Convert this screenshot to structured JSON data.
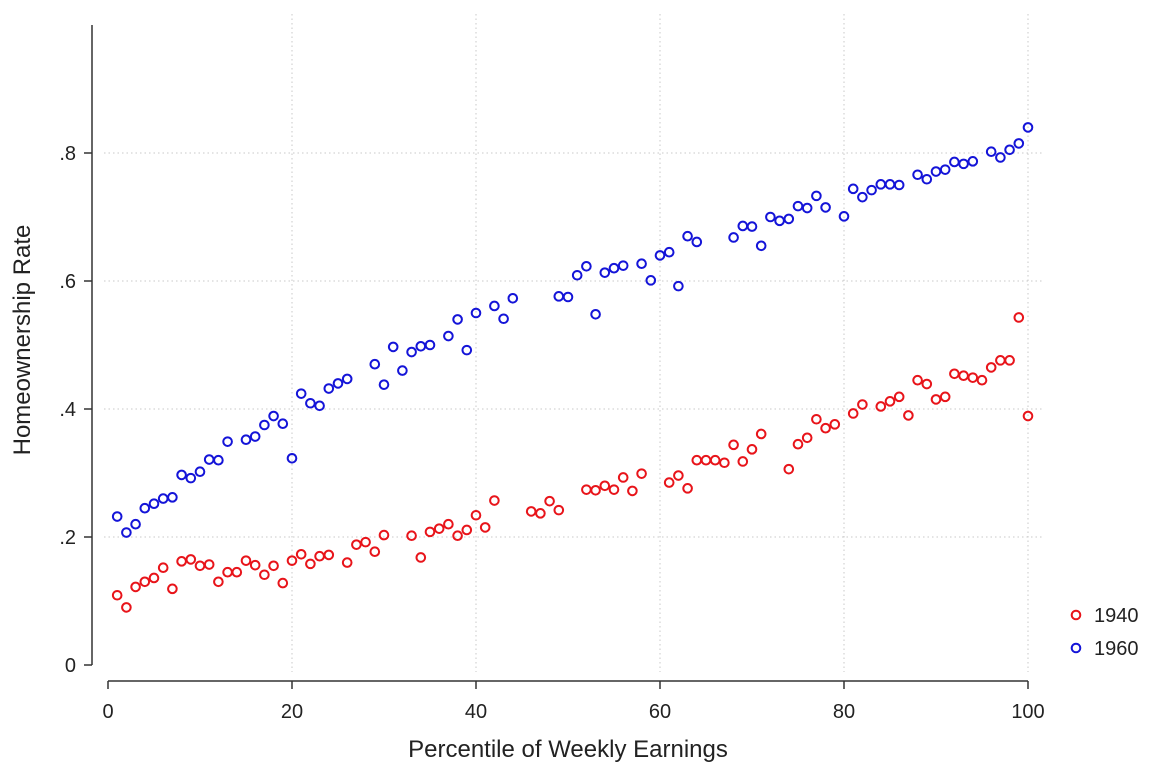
{
  "chart_data": {
    "type": "scatter",
    "xlabel": "Percentile of Weekly Earnings",
    "ylabel": "Homeownership Rate",
    "xlim": [
      0,
      100
    ],
    "ylim": [
      0,
      1.0
    ],
    "xticks": [
      {
        "value": 0,
        "label": "0"
      },
      {
        "value": 20,
        "label": "20"
      },
      {
        "value": 40,
        "label": "40"
      },
      {
        "value": 60,
        "label": "60"
      },
      {
        "value": 80,
        "label": "80"
      },
      {
        "value": 100,
        "label": "100"
      }
    ],
    "yticks": [
      {
        "value": 0,
        "label": "0"
      },
      {
        "value": 0.2,
        "label": ".2"
      },
      {
        "value": 0.4,
        "label": ".4"
      },
      {
        "value": 0.6,
        "label": ".6"
      },
      {
        "value": 0.8,
        "label": ".8"
      }
    ],
    "grid": true,
    "legend_position": "right-bottom",
    "series": [
      {
        "name": "1940",
        "color": "#e8141a",
        "x": [
          1,
          2,
          3,
          4,
          5,
          6,
          7,
          8,
          9,
          10,
          11,
          12,
          13,
          14,
          15,
          16,
          17,
          18,
          19,
          20,
          21,
          22,
          23,
          24,
          26,
          27,
          28,
          29,
          30,
          33,
          34,
          35,
          36,
          37,
          38,
          39,
          40,
          41,
          42,
          46,
          47,
          48,
          49,
          52,
          53,
          54,
          55,
          56,
          57,
          58,
          61,
          62,
          63,
          64,
          65,
          66,
          67,
          68,
          69,
          70,
          71,
          74,
          75,
          76,
          77,
          78,
          79,
          81,
          82,
          84,
          85,
          86,
          87,
          88,
          89,
          90,
          91,
          92,
          93,
          94,
          95,
          96,
          97,
          98,
          99,
          100
        ],
        "y": [
          0.109,
          0.09,
          0.122,
          0.13,
          0.136,
          0.152,
          0.119,
          0.162,
          0.165,
          0.155,
          0.157,
          0.13,
          0.145,
          0.145,
          0.163,
          0.156,
          0.141,
          0.155,
          0.128,
          0.163,
          0.173,
          0.158,
          0.17,
          0.172,
          0.16,
          0.188,
          0.192,
          0.177,
          0.203,
          0.202,
          0.168,
          0.208,
          0.213,
          0.22,
          0.202,
          0.211,
          0.234,
          0.215,
          0.257,
          0.24,
          0.237,
          0.256,
          0.242,
          0.274,
          0.273,
          0.28,
          0.274,
          0.293,
          0.272,
          0.299,
          0.285,
          0.296,
          0.276,
          0.32,
          0.32,
          0.32,
          0.316,
          0.344,
          0.318,
          0.337,
          0.361,
          0.306,
          0.345,
          0.355,
          0.384,
          0.37,
          0.376,
          0.393,
          0.407,
          0.404,
          0.412,
          0.419,
          0.39,
          0.445,
          0.439,
          0.415,
          0.419,
          0.455,
          0.452,
          0.449,
          0.445,
          0.465,
          0.476,
          0.476,
          0.543,
          0.389
        ]
      },
      {
        "name": "1960",
        "color": "#1414d8",
        "x": [
          1,
          2,
          3,
          4,
          5,
          6,
          7,
          8,
          9,
          10,
          11,
          12,
          13,
          15,
          16,
          17,
          18,
          19,
          20,
          21,
          22,
          23,
          24,
          25,
          26,
          29,
          30,
          31,
          32,
          33,
          34,
          35,
          37,
          38,
          39,
          40,
          42,
          43,
          44,
          49,
          50,
          51,
          52,
          53,
          54,
          55,
          56,
          58,
          59,
          60,
          61,
          62,
          63,
          64,
          68,
          69,
          70,
          71,
          72,
          73,
          74,
          75,
          76,
          77,
          78,
          80,
          81,
          82,
          83,
          84,
          85,
          86,
          88,
          89,
          90,
          91,
          92,
          93,
          94,
          96,
          97,
          98,
          99,
          100
        ],
        "y": [
          0.232,
          0.207,
          0.22,
          0.245,
          0.252,
          0.26,
          0.262,
          0.297,
          0.292,
          0.302,
          0.321,
          0.32,
          0.349,
          0.352,
          0.357,
          0.375,
          0.389,
          0.377,
          0.323,
          0.424,
          0.409,
          0.405,
          0.432,
          0.44,
          0.447,
          0.47,
          0.438,
          0.497,
          0.46,
          0.489,
          0.498,
          0.5,
          0.514,
          0.54,
          0.492,
          0.55,
          0.561,
          0.541,
          0.573,
          0.576,
          0.575,
          0.609,
          0.623,
          0.548,
          0.613,
          0.62,
          0.624,
          0.627,
          0.601,
          0.64,
          0.645,
          0.592,
          0.67,
          0.661,
          0.668,
          0.686,
          0.685,
          0.655,
          0.7,
          0.694,
          0.697,
          0.717,
          0.714,
          0.733,
          0.715,
          0.701,
          0.744,
          0.731,
          0.742,
          0.751,
          0.751,
          0.75,
          0.766,
          0.759,
          0.771,
          0.774,
          0.786,
          0.783,
          0.787,
          0.802,
          0.793,
          0.805,
          0.815,
          0.84
        ]
      }
    ]
  }
}
